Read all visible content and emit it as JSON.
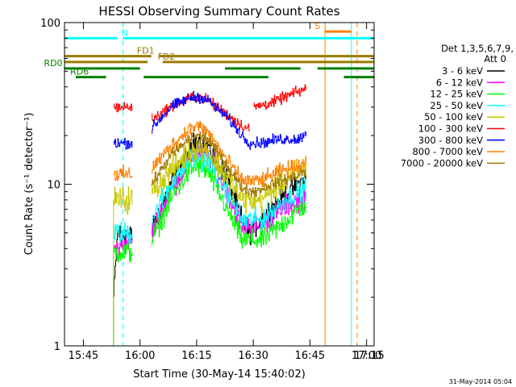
{
  "chart_data": {
    "type": "line",
    "title": "HESSI Observing Summary Count Rates",
    "xlabel": "Start Time (30-May-14 15:40:02)",
    "ylabel": "Count Rate (s⁻¹ detector⁻¹)",
    "yscale": "log",
    "ylim": [
      1,
      100
    ],
    "xlim_minutes": [
      15.0,
      97.0
    ],
    "x_ticks": [
      {
        "t": 20,
        "label": "15:45"
      },
      {
        "t": 35,
        "label": "16:00"
      },
      {
        "t": 50,
        "label": "16:15"
      },
      {
        "t": 65,
        "label": "16:30"
      },
      {
        "t": 80,
        "label": "16:45"
      },
      {
        "t": 95,
        "label": "17:00"
      },
      {
        "t": 110,
        "label": "17:15"
      }
    ],
    "y_ticks": [
      {
        "v": 1,
        "label": "1"
      },
      {
        "v": 10,
        "label": "10"
      },
      {
        "v": 100,
        "label": "100"
      }
    ],
    "legend_header": [
      "Det 1,3,5,6,7,9,",
      "Att 0"
    ],
    "legend_position": "right",
    "footer_date": "31-May-2014 05:04",
    "series": [
      {
        "name": "3 - 6 keV",
        "color": "#000000",
        "fade": 0.55,
        "mid": 28,
        "amp": 0.1,
        "points": [
          [
            28,
            2
          ],
          [
            29,
            5
          ],
          [
            33,
            4.8
          ],
          [
            33.5,
            0
          ],
          [
            38,
            5
          ],
          [
            43,
            10
          ],
          [
            48,
            16
          ],
          [
            50,
            19
          ],
          [
            53,
            17
          ],
          [
            58,
            11
          ],
          [
            62,
            6
          ],
          [
            64,
            5
          ],
          [
            67,
            6
          ],
          [
            72,
            8
          ],
          [
            77,
            10
          ],
          [
            79,
            11
          ]
        ]
      },
      {
        "name": "6 - 12 keV",
        "color": "#ff00ff",
        "fade": 0.3,
        "mid": 20,
        "amp": 0.1,
        "points": [
          [
            28,
            4
          ],
          [
            33,
            4.5
          ],
          [
            33.5,
            0
          ],
          [
            38,
            5
          ],
          [
            43,
            9
          ],
          [
            48,
            14
          ],
          [
            50,
            16
          ],
          [
            53,
            15
          ],
          [
            58,
            9
          ],
          [
            62,
            5.5
          ],
          [
            67,
            5.5
          ],
          [
            72,
            7
          ],
          [
            77,
            8
          ],
          [
            79,
            8
          ]
        ]
      },
      {
        "name": "12 - 25 keV",
        "color": "#00ff00",
        "fade": 0.4,
        "mid": 33,
        "amp": 0.1,
        "points": [
          [
            28,
            3.8
          ],
          [
            33,
            3.8
          ],
          [
            33.5,
            0
          ],
          [
            38,
            4.5
          ],
          [
            43,
            8
          ],
          [
            48,
            12
          ],
          [
            50,
            13
          ],
          [
            53,
            12
          ],
          [
            58,
            7
          ],
          [
            62,
            4.5
          ],
          [
            67,
            4.5
          ],
          [
            72,
            5.5
          ],
          [
            77,
            7
          ],
          [
            79,
            7.5
          ]
        ]
      },
      {
        "name": "25 - 50 keV",
        "color": "#00ffff",
        "fade": 0.3,
        "mid": 20,
        "amp": 0.1,
        "points": [
          [
            28,
            5
          ],
          [
            33,
            5
          ],
          [
            33.5,
            0
          ],
          [
            38,
            6
          ],
          [
            43,
            10
          ],
          [
            48,
            14
          ],
          [
            50,
            15
          ],
          [
            53,
            14
          ],
          [
            58,
            9
          ],
          [
            62,
            6
          ],
          [
            67,
            6
          ],
          [
            72,
            7.5
          ],
          [
            77,
            9
          ],
          [
            79,
            9.5
          ]
        ]
      },
      {
        "name": "50 - 100 keV",
        "color": "#c8c800",
        "fade": 0.35,
        "mid": 20,
        "amp": 0.12,
        "points": [
          [
            28,
            8
          ],
          [
            33,
            8
          ],
          [
            33.5,
            0
          ],
          [
            38,
            9
          ],
          [
            43,
            12
          ],
          [
            48,
            16
          ],
          [
            50,
            17
          ],
          [
            53,
            16
          ],
          [
            58,
            11
          ],
          [
            62,
            8
          ],
          [
            67,
            8
          ],
          [
            72,
            10
          ],
          [
            77,
            12
          ],
          [
            79,
            13.5
          ]
        ]
      },
      {
        "name": "100 - 300 keV",
        "color": "#ff0000",
        "fade": 0,
        "mid": 18,
        "amp": 0.05,
        "points": [
          [
            28,
            30
          ],
          [
            33,
            30
          ],
          [
            33.5,
            0
          ],
          [
            38,
            25
          ],
          [
            43,
            30
          ],
          [
            48,
            34
          ],
          [
            50,
            35
          ],
          [
            53,
            33
          ],
          [
            58,
            27
          ],
          [
            62,
            23
          ],
          [
            64,
            22
          ],
          [
            64.5,
            0
          ],
          [
            65,
            30
          ],
          [
            70,
            32
          ],
          [
            75,
            36
          ],
          [
            79,
            39
          ]
        ]
      },
      {
        "name": "300 - 800 keV",
        "color": "#0000ff",
        "fade": 0,
        "mid": 19,
        "amp": 0.05,
        "points": [
          [
            28,
            18
          ],
          [
            33,
            18
          ],
          [
            33.5,
            0
          ],
          [
            38,
            22
          ],
          [
            43,
            30
          ],
          [
            48,
            34
          ],
          [
            50,
            35
          ],
          [
            53,
            33
          ],
          [
            58,
            26
          ],
          [
            62,
            20
          ],
          [
            64,
            18
          ],
          [
            67,
            18
          ],
          [
            72,
            19
          ],
          [
            77,
            19
          ],
          [
            79,
            21
          ]
        ]
      },
      {
        "name": "800 - 7000 keV",
        "color": "#ff8000",
        "fade": 0,
        "mid": 13,
        "amp": 0.07,
        "points": [
          [
            28,
            11.5
          ],
          [
            33,
            11.5
          ],
          [
            33.5,
            0
          ],
          [
            38,
            12.5
          ],
          [
            43,
            17
          ],
          [
            48,
            22
          ],
          [
            50,
            23
          ],
          [
            53,
            21
          ],
          [
            58,
            14
          ],
          [
            62,
            10.5
          ],
          [
            67,
            10.5
          ],
          [
            72,
            12
          ],
          [
            77,
            13
          ],
          [
            79,
            14
          ]
        ]
      },
      {
        "name": "7000 - 20000 keV",
        "color": "#a07800",
        "fade": 0,
        "mid": 15,
        "amp": 0.05,
        "points": [
          [
            38,
            10
          ],
          [
            43,
            15
          ],
          [
            48,
            19
          ],
          [
            50,
            20
          ],
          [
            53,
            19
          ],
          [
            58,
            13
          ],
          [
            62,
            9.5
          ],
          [
            65,
            9
          ],
          [
            70,
            10
          ],
          [
            75,
            11
          ],
          [
            79,
            12
          ]
        ]
      }
    ],
    "markers": [
      {
        "label": "N",
        "color": "#00ffff",
        "segments": [
          [
            15,
            29
          ],
          [
            30.5,
            97
          ]
        ],
        "level": 80,
        "label_t": 31
      },
      {
        "label": "S",
        "color": "#ff8000",
        "segments": [
          [
            84,
            91
          ]
        ],
        "level": 88,
        "label_t": 82
      },
      {
        "label": "FD1",
        "color": "#9a7a00",
        "segments": [
          [
            15,
            38
          ],
          [
            40,
            97
          ]
        ],
        "level": 62,
        "label_t": 36.5
      },
      {
        "label": "FD2",
        "color": "#9a7a00",
        "segments": [
          [
            15,
            37
          ],
          [
            41,
            97
          ]
        ],
        "level": 57,
        "label_t": 42
      },
      {
        "label": "RD0",
        "color": "#008000",
        "segments": [
          [
            15,
            35
          ],
          [
            57.5,
            77.5
          ],
          [
            82,
            97
          ]
        ],
        "level": 52,
        "label_t": 12
      },
      {
        "label": "RD6",
        "color": "#008000",
        "segments": [
          [
            18,
            26
          ],
          [
            36,
            69
          ],
          [
            89,
            97
          ]
        ],
        "level": 46,
        "label_t": 19
      }
    ],
    "vertical_lines": [
      {
        "t": 15,
        "color": "#00ffff",
        "dash": false
      },
      {
        "t": 30.5,
        "color": "#00ffff",
        "dash": true
      },
      {
        "t": 91,
        "color": "#00ffff",
        "dash": false
      },
      {
        "t": 84,
        "color": "#ff8000",
        "dash": false
      },
      {
        "t": 92.5,
        "color": "#ff8000",
        "dash": true
      },
      {
        "t": 97,
        "color": "#00ffff",
        "dash": true
      }
    ]
  }
}
